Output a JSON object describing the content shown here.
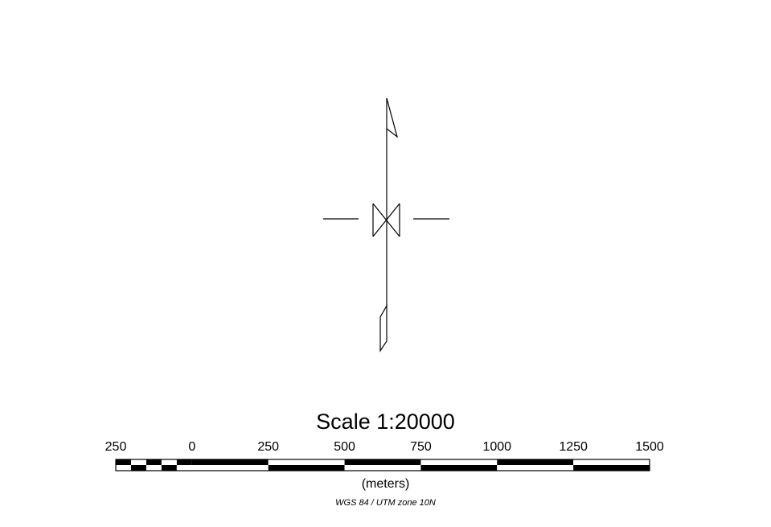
{
  "map": {
    "north_arrow": {
      "icon": "north-arrow-icon"
    },
    "scale": {
      "title": "Scale 1:20000",
      "units": "(meters)",
      "tick_values": [
        -250,
        0,
        250,
        500,
        750,
        1000,
        1250,
        1500
      ],
      "tick_labels": [
        "250",
        "0",
        "250",
        "500",
        "750",
        "1000",
        "1250",
        "1500"
      ],
      "left_subdivisions": 5,
      "colors": {
        "fill": "#000000",
        "alternate": "#ffffff"
      }
    },
    "projection": "WGS 84 / UTM zone 10N"
  }
}
